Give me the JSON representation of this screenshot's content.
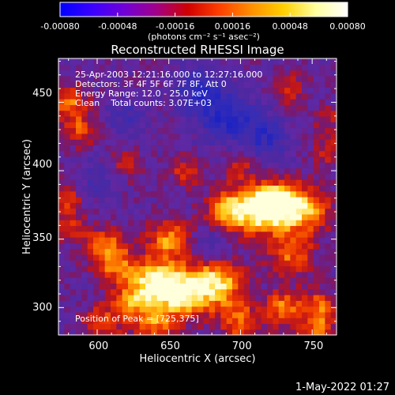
{
  "colorbar": {
    "ticks": [
      "-0.00080",
      "-0.00048",
      "-0.00016",
      "0.00016",
      "0.00048",
      "0.00080"
    ],
    "tick_values": [
      -0.0008,
      -0.00048,
      -0.00016,
      0.00016,
      0.00048,
      0.0008
    ],
    "range": [
      -0.0008,
      0.0008
    ],
    "unit_label": "(photons cm⁻² s⁻¹ asec⁻²)",
    "colors": [
      "#0000ff",
      "#3a00ff",
      "#7000d8",
      "#a0008a",
      "#d00000",
      "#ff4000",
      "#ff9000",
      "#ffd000",
      "#ffffa0",
      "#ffffff"
    ]
  },
  "chart_data": {
    "type": "heatmap",
    "title": "Reconstructed RHESSI Image",
    "xlabel": "Heliocentric X (arcsec)",
    "ylabel": "Heliocentric Y (arcsec)",
    "xlim": [
      573,
      767
    ],
    "ylim": [
      280,
      482
    ],
    "xticks": [
      600,
      650,
      700,
      750
    ],
    "yticks": [
      300,
      350,
      400,
      450
    ],
    "info_lines": [
      "25-Apr-2003 12:21:16.000 to 12:27:16.000",
      "Detectors: 3F 4F 5F 6F 7F 8F, Att 0",
      "Energy Range: 12.0 - 25.0 keV",
      "Clean    Total counts: 3.07E+03"
    ],
    "peak_label": "Position of Peak = [725,375]",
    "peak": [
      725,
      375
    ],
    "grid_size": [
      48,
      48
    ],
    "hotspots": [
      {
        "x": 725,
        "y": 375,
        "v": 1.0,
        "s": 10
      },
      {
        "x": 710,
        "y": 372,
        "v": 0.8,
        "s": 13
      },
      {
        "x": 745,
        "y": 372,
        "v": 0.75,
        "s": 12
      },
      {
        "x": 690,
        "y": 372,
        "v": 0.6,
        "s": 10
      },
      {
        "x": 735,
        "y": 340,
        "v": 0.55,
        "s": 11
      },
      {
        "x": 660,
        "y": 312,
        "v": 0.95,
        "s": 13
      },
      {
        "x": 685,
        "y": 318,
        "v": 0.8,
        "s": 12
      },
      {
        "x": 640,
        "y": 320,
        "v": 0.75,
        "s": 11
      },
      {
        "x": 615,
        "y": 330,
        "v": 0.55,
        "s": 10
      },
      {
        "x": 650,
        "y": 350,
        "v": 0.65,
        "s": 10
      },
      {
        "x": 605,
        "y": 345,
        "v": 0.6,
        "s": 9
      },
      {
        "x": 625,
        "y": 305,
        "v": 0.55,
        "s": 9
      },
      {
        "x": 640,
        "y": 290,
        "v": 0.55,
        "s": 10
      },
      {
        "x": 605,
        "y": 290,
        "v": 0.45,
        "s": 10
      },
      {
        "x": 700,
        "y": 290,
        "v": 0.55,
        "s": 10
      },
      {
        "x": 730,
        "y": 300,
        "v": 0.6,
        "s": 9
      },
      {
        "x": 755,
        "y": 300,
        "v": 0.55,
        "s": 9
      },
      {
        "x": 753,
        "y": 282,
        "v": 0.5,
        "s": 8
      },
      {
        "x": 580,
        "y": 450,
        "v": 0.55,
        "s": 9
      },
      {
        "x": 588,
        "y": 430,
        "v": 0.45,
        "s": 8
      },
      {
        "x": 578,
        "y": 380,
        "v": 0.4,
        "s": 8
      },
      {
        "x": 582,
        "y": 360,
        "v": 0.35,
        "s": 8
      },
      {
        "x": 620,
        "y": 405,
        "v": 0.3,
        "s": 8
      },
      {
        "x": 662,
        "y": 400,
        "v": 0.45,
        "s": 7
      },
      {
        "x": 700,
        "y": 405,
        "v": 0.3,
        "s": 8
      },
      {
        "x": 735,
        "y": 460,
        "v": 0.35,
        "s": 8
      },
      {
        "x": 762,
        "y": 415,
        "v": 0.35,
        "s": 8
      },
      {
        "x": 760,
        "y": 440,
        "v": 0.3,
        "s": 7
      },
      {
        "x": 690,
        "y": 440,
        "v": -0.55,
        "s": 14
      },
      {
        "x": 670,
        "y": 460,
        "v": -0.45,
        "s": 12
      },
      {
        "x": 718,
        "y": 425,
        "v": -0.45,
        "s": 11
      },
      {
        "x": 620,
        "y": 440,
        "v": -0.3,
        "s": 10
      },
      {
        "x": 600,
        "y": 395,
        "v": -0.25,
        "s": 10
      },
      {
        "x": 680,
        "y": 345,
        "v": -0.25,
        "s": 9
      }
    ]
  },
  "footer": {
    "date_label": "1-May-2022 01:27"
  },
  "theme": {
    "background": "#000000",
    "text": "#ffffff",
    "base_color": "#4b2aa3"
  }
}
